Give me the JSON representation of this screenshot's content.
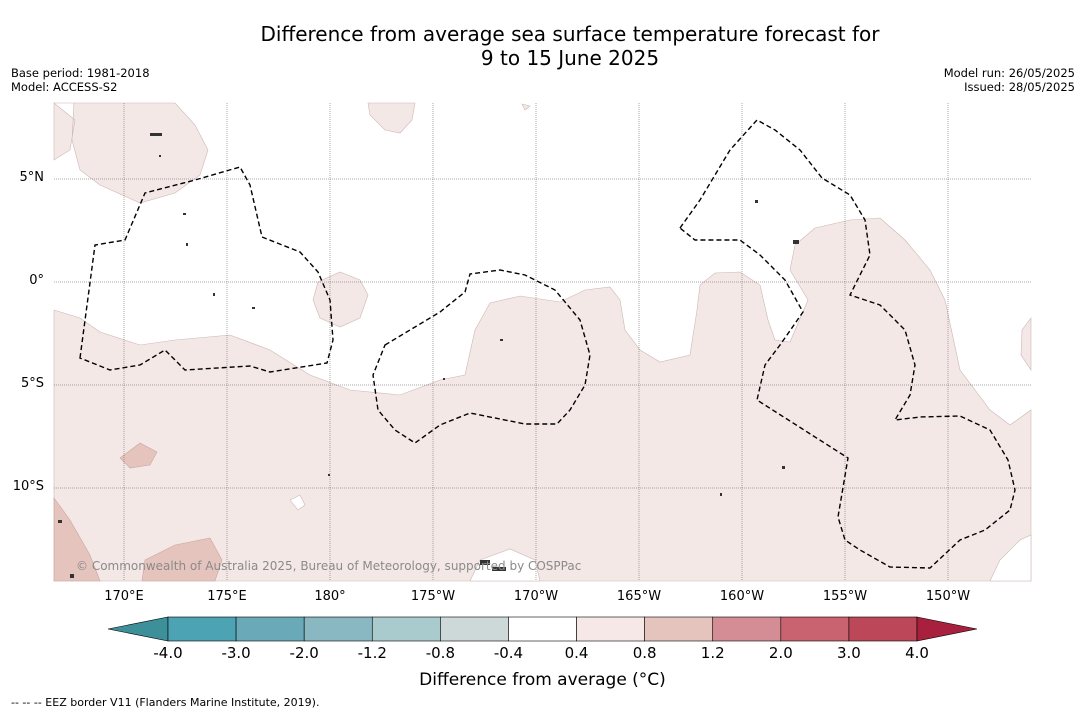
{
  "title_line1": "Difference from average sea surface temperature forecast for",
  "title_line2": "9 to 15 June 2025",
  "meta_left": [
    "Base period: 1981-2018",
    "Model: ACCESS-S2"
  ],
  "meta_right": [
    "Model run: 26/05/2025",
    "Issued: 28/05/2025"
  ],
  "lat_labels": [
    "5°N",
    "0°",
    "5°S",
    "10°S"
  ],
  "lon_labels": [
    "170°E",
    "175°E",
    "180°",
    "175°W",
    "170°W",
    "165°W",
    "160°W",
    "155°W",
    "150°W"
  ],
  "copyright": "© Commonwealth of Australia 2025, Bureau of Meteorology, supported by COSPPac",
  "colorbar": {
    "ticks": [
      "-4.0",
      "-3.0",
      "-2.0",
      "-1.2",
      "-0.8",
      "-0.4",
      "0.4",
      "0.8",
      "1.2",
      "2.0",
      "3.0",
      "4.0"
    ],
    "colors": [
      "#3d8f9a",
      "#4ca3b3",
      "#6aaab8",
      "#8ab8c2",
      "#aacbce",
      "#cdd8d8",
      "#ffffff",
      "#f5e8e6",
      "#e6c4be",
      "#d48d95",
      "#c8636f",
      "#bc4758",
      "#a8203e"
    ],
    "label": "Difference from average (°C)"
  },
  "footnote": "-- -- -- EEZ border V11 (Flanders Marine Institute, 2019)."
}
